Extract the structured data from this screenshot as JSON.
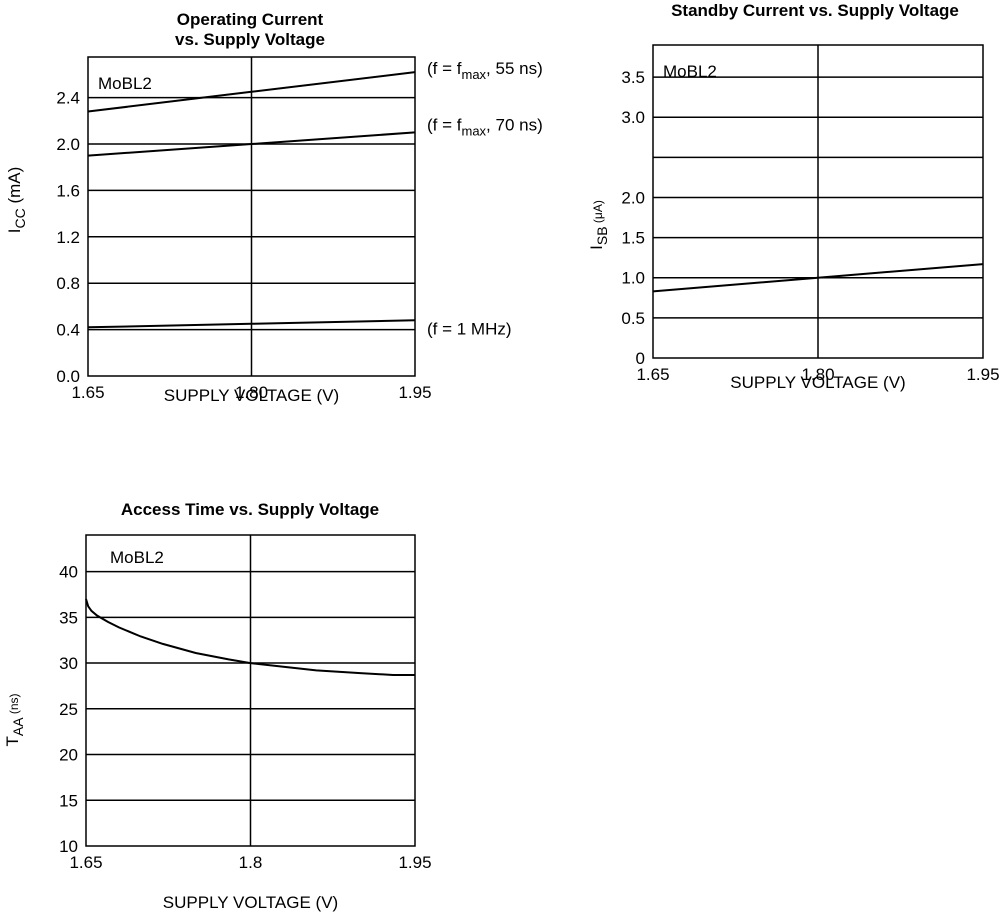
{
  "chart_data": [
    {
      "id": "icc",
      "type": "line",
      "title_lines": [
        "Operating Current",
        "vs. Supply Voltage"
      ],
      "xlabel": "SUPPLY VOLTAGE (V)",
      "ylabel_main": "I",
      "ylabel_sub": "CC",
      "ylabel_unit": " (mA)",
      "inside_label": "MoBL2",
      "xlim": [
        1.65,
        1.95
      ],
      "ylim": [
        0.0,
        2.75
      ],
      "x_grid": [
        1.8
      ],
      "y_grid": [
        0.4,
        0.8,
        1.2,
        1.6,
        2.0,
        2.4
      ],
      "x_ticks": [
        {
          "value": 1.65,
          "label": "1.65"
        },
        {
          "value": 1.8,
          "label": "1.80"
        },
        {
          "value": 1.95,
          "label": "1.95"
        }
      ],
      "y_ticks": [
        {
          "value": 0.0,
          "label": "0.0"
        },
        {
          "value": 0.4,
          "label": "0.4"
        },
        {
          "value": 0.8,
          "label": "0.8"
        },
        {
          "value": 1.2,
          "label": "1.2"
        },
        {
          "value": 1.6,
          "label": "1.6"
        },
        {
          "value": 2.0,
          "label": "2.0"
        },
        {
          "value": 2.4,
          "label": "2.4"
        }
      ],
      "series": [
        {
          "label_pre": "(f = f",
          "label_sub": "max",
          "label_post": ", 55 ns)",
          "x": [
            1.65,
            1.8,
            1.95
          ],
          "y": [
            2.28,
            2.45,
            2.62
          ]
        },
        {
          "label_pre": "(f = f",
          "label_sub": "max",
          "label_post": ", 70 ns)",
          "x": [
            1.65,
            1.8,
            1.95
          ],
          "y": [
            1.9,
            2.0,
            2.1
          ]
        },
        {
          "label_pre": "(f = 1 MHz)",
          "label_sub": "",
          "label_post": "",
          "x": [
            1.65,
            1.8,
            1.95
          ],
          "y": [
            0.42,
            0.45,
            0.48
          ]
        }
      ]
    },
    {
      "id": "isb",
      "type": "line",
      "title_lines": [
        "Standby Current vs. Supply Voltage"
      ],
      "xlabel": "SUPPLY VOLTAGE (V)",
      "ylabel_main": "I",
      "ylabel_sub": "SB",
      "ylabel_unit": " (μA)",
      "inside_label": "MoBL2",
      "xlim": [
        1.65,
        1.95
      ],
      "ylim": [
        0.0,
        3.9
      ],
      "x_grid": [
        1.8
      ],
      "y_grid": [
        0.5,
        1.0,
        1.5,
        2.0,
        2.5,
        3.0,
        3.5
      ],
      "x_ticks": [
        {
          "value": 1.65,
          "label": "1.65"
        },
        {
          "value": 1.8,
          "label": "1.80"
        },
        {
          "value": 1.95,
          "label": "1.95"
        }
      ],
      "y_ticks": [
        {
          "value": 0.0,
          "label": "0"
        },
        {
          "value": 0.5,
          "label": "0.5"
        },
        {
          "value": 1.0,
          "label": "1.0"
        },
        {
          "value": 1.5,
          "label": "1.5"
        },
        {
          "value": 2.0,
          "label": "2.0"
        },
        {
          "value": 3.0,
          "label": "3.0"
        },
        {
          "value": 3.5,
          "label": "3.5"
        }
      ],
      "series": [
        {
          "label_pre": "",
          "label_sub": "",
          "label_post": "",
          "x": [
            1.65,
            1.8,
            1.95
          ],
          "y": [
            0.83,
            1.0,
            1.17
          ]
        }
      ]
    },
    {
      "id": "taa",
      "type": "line",
      "title_lines": [
        "Access Time vs. Supply Voltage"
      ],
      "xlabel": "SUPPLY VOLTAGE (V)",
      "ylabel_main": "T",
      "ylabel_sub": "AA",
      "ylabel_unit": " (ns)",
      "inside_label": "MoBL2",
      "xlim": [
        1.65,
        1.95
      ],
      "ylim": [
        10,
        44
      ],
      "x_grid": [
        1.8
      ],
      "y_grid": [
        15,
        20,
        25,
        30,
        35,
        40
      ],
      "x_ticks": [
        {
          "value": 1.65,
          "label": "1.65"
        },
        {
          "value": 1.8,
          "label": "1.8"
        },
        {
          "value": 1.95,
          "label": "1.95"
        }
      ],
      "y_ticks": [
        {
          "value": 10,
          "label": "10"
        },
        {
          "value": 15,
          "label": "15"
        },
        {
          "value": 20,
          "label": "20"
        },
        {
          "value": 25,
          "label": "25"
        },
        {
          "value": 30,
          "label": "30"
        },
        {
          "value": 35,
          "label": "35"
        },
        {
          "value": 40,
          "label": "40"
        }
      ],
      "series": [
        {
          "label_pre": "",
          "label_sub": "",
          "label_post": "",
          "x": [
            1.65,
            1.652,
            1.655,
            1.66,
            1.67,
            1.68,
            1.7,
            1.72,
            1.75,
            1.78,
            1.8,
            1.83,
            1.86,
            1.9,
            1.93,
            1.95
          ],
          "y": [
            37.0,
            36.2,
            35.7,
            35.2,
            34.5,
            33.9,
            32.9,
            32.1,
            31.1,
            30.4,
            30.0,
            29.6,
            29.2,
            28.9,
            28.7,
            28.7
          ]
        }
      ]
    }
  ]
}
